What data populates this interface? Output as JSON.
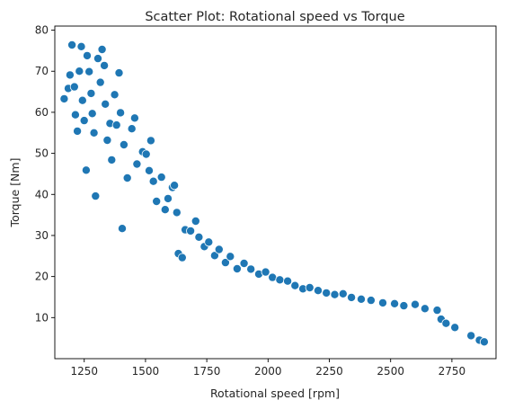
{
  "chart_data": {
    "type": "scatter",
    "title": "Scatter Plot: Rotational speed vs Torque",
    "xlabel": "Rotational speed [rpm]",
    "ylabel": "Torque [Nm]",
    "xlim": [
      1130,
      2930
    ],
    "ylim": [
      0,
      81
    ],
    "xticks": [
      1250,
      1500,
      1750,
      2000,
      2250,
      2500,
      2750
    ],
    "yticks": [
      10,
      20,
      30,
      40,
      50,
      60,
      70,
      80
    ],
    "grid": false,
    "legend": "none",
    "point_color": "#1f77b4",
    "point_edge_color": "#ffffff",
    "points": [
      [
        1168,
        63.3
      ],
      [
        1185,
        65.8
      ],
      [
        1192,
        69.1
      ],
      [
        1200,
        76.4
      ],
      [
        1210,
        66.2
      ],
      [
        1214,
        59.4
      ],
      [
        1222,
        55.4
      ],
      [
        1230,
        70.0
      ],
      [
        1238,
        76.0
      ],
      [
        1243,
        62.9
      ],
      [
        1250,
        58.0
      ],
      [
        1258,
        45.9
      ],
      [
        1262,
        73.8
      ],
      [
        1270,
        69.9
      ],
      [
        1278,
        64.6
      ],
      [
        1283,
        59.7
      ],
      [
        1290,
        55.0
      ],
      [
        1296,
        39.6
      ],
      [
        1306,
        73.1
      ],
      [
        1316,
        67.3
      ],
      [
        1323,
        75.3
      ],
      [
        1332,
        71.4
      ],
      [
        1336,
        62.0
      ],
      [
        1344,
        53.2
      ],
      [
        1355,
        57.3
      ],
      [
        1362,
        48.4
      ],
      [
        1374,
        64.3
      ],
      [
        1382,
        56.9
      ],
      [
        1392,
        69.6
      ],
      [
        1398,
        59.9
      ],
      [
        1405,
        31.7
      ],
      [
        1412,
        52.1
      ],
      [
        1426,
        44.0
      ],
      [
        1444,
        56.0
      ],
      [
        1456,
        58.6
      ],
      [
        1465,
        47.4
      ],
      [
        1488,
        50.4
      ],
      [
        1503,
        49.8
      ],
      [
        1515,
        45.8
      ],
      [
        1522,
        53.1
      ],
      [
        1532,
        43.2
      ],
      [
        1545,
        38.3
      ],
      [
        1565,
        44.2
      ],
      [
        1580,
        36.3
      ],
      [
        1592,
        39.0
      ],
      [
        1610,
        41.7
      ],
      [
        1618,
        42.2
      ],
      [
        1628,
        35.6
      ],
      [
        1634,
        25.6
      ],
      [
        1650,
        24.6
      ],
      [
        1662,
        31.4
      ],
      [
        1684,
        31.1
      ],
      [
        1705,
        33.5
      ],
      [
        1718,
        29.6
      ],
      [
        1740,
        27.3
      ],
      [
        1758,
        28.4
      ],
      [
        1782,
        25.1
      ],
      [
        1800,
        26.6
      ],
      [
        1826,
        23.4
      ],
      [
        1846,
        24.9
      ],
      [
        1874,
        21.9
      ],
      [
        1902,
        23.2
      ],
      [
        1930,
        21.8
      ],
      [
        1962,
        20.6
      ],
      [
        1990,
        21.1
      ],
      [
        2018,
        19.8
      ],
      [
        2048,
        19.2
      ],
      [
        2080,
        18.9
      ],
      [
        2110,
        17.8
      ],
      [
        2142,
        17.0
      ],
      [
        2170,
        17.3
      ],
      [
        2204,
        16.6
      ],
      [
        2238,
        16.0
      ],
      [
        2272,
        15.6
      ],
      [
        2306,
        15.8
      ],
      [
        2340,
        14.9
      ],
      [
        2380,
        14.5
      ],
      [
        2420,
        14.2
      ],
      [
        2468,
        13.6
      ],
      [
        2516,
        13.4
      ],
      [
        2554,
        12.9
      ],
      [
        2600,
        13.2
      ],
      [
        2640,
        12.2
      ],
      [
        2690,
        11.8
      ],
      [
        2706,
        9.6
      ],
      [
        2726,
        8.6
      ],
      [
        2762,
        7.6
      ],
      [
        2828,
        5.6
      ],
      [
        2862,
        4.5
      ],
      [
        2882,
        4.1
      ]
    ]
  }
}
